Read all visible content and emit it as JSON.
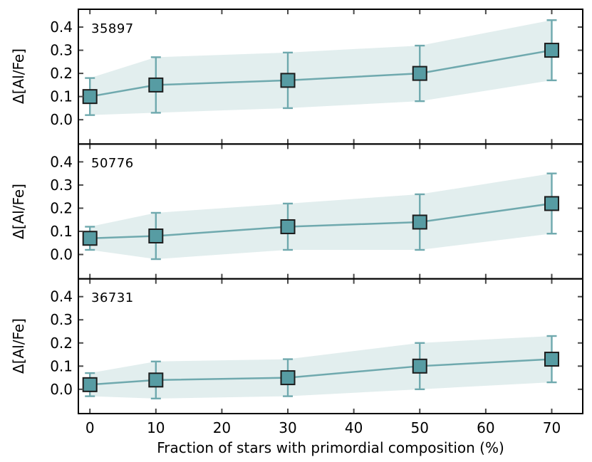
{
  "figure": {
    "xlabel": "Fraction of stars with primordial composition (%)",
    "ylabel": "Δ[Al/Fe]",
    "x_ticks": [
      0,
      10,
      20,
      30,
      40,
      50,
      60,
      70
    ],
    "y_ticks": [
      0.0,
      0.1,
      0.2,
      0.3,
      0.4
    ],
    "xlim": [
      -1.75,
      74.7
    ],
    "ylim": [
      -0.105,
      0.477
    ],
    "grid": false,
    "legend": "none"
  },
  "chart_data": [
    {
      "type": "line",
      "title": "35897",
      "x": [
        0,
        10,
        30,
        50,
        70
      ],
      "y": [
        0.1,
        0.15,
        0.17,
        0.2,
        0.3
      ],
      "yerr": [
        0.08,
        0.12,
        0.12,
        0.12,
        0.13
      ],
      "marker": "square",
      "error_band": true
    },
    {
      "type": "line",
      "title": "50776",
      "x": [
        0,
        10,
        30,
        50,
        70
      ],
      "y": [
        0.07,
        0.08,
        0.12,
        0.14,
        0.22
      ],
      "yerr": [
        0.05,
        0.1,
        0.1,
        0.12,
        0.13
      ],
      "marker": "square",
      "error_band": true
    },
    {
      "type": "line",
      "title": "36731",
      "x": [
        0,
        10,
        30,
        50,
        70
      ],
      "y": [
        0.02,
        0.04,
        0.05,
        0.1,
        0.13
      ],
      "yerr": [
        0.05,
        0.08,
        0.08,
        0.1,
        0.1
      ],
      "marker": "square",
      "error_band": true
    }
  ],
  "colors": {
    "line": "#6FA9AE",
    "marker_fill": "#579CA3",
    "marker_edge": "#1c1c1c",
    "band_fill": "#5F9EA0",
    "band_opacity": 0.18,
    "frame": "#000000",
    "tick": "#4a4a4a",
    "text": "#000000",
    "background": "#ffffff"
  }
}
